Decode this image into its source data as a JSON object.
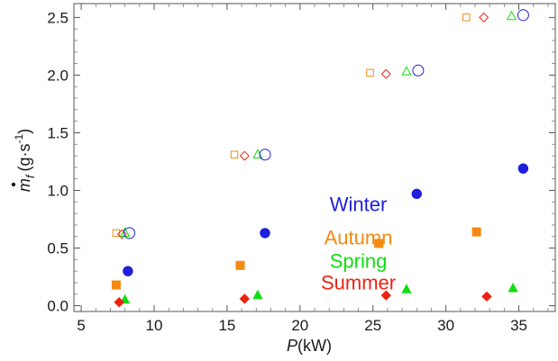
{
  "chart_data": {
    "type": "scatter",
    "title": "",
    "xlabel": {
      "var": "P",
      "unit": "(kW)"
    },
    "ylabel": {
      "var": "m",
      "sub": "f",
      "unit": "(g·s",
      "exp": "-1",
      "close": ")"
    },
    "xlim": [
      4.5,
      37.5
    ],
    "ylim": [
      -0.05,
      2.62
    ],
    "xticks": [
      "5",
      "10",
      "15",
      "20",
      "25",
      "30",
      "35"
    ],
    "yticks": [
      "0.0",
      "0.5",
      "1.0",
      "1.5",
      "2.0",
      "2.5"
    ],
    "xtick_values": [
      5,
      10,
      15,
      20,
      25,
      30,
      35
    ],
    "ytick_values": [
      0,
      0.5,
      1.0,
      1.5,
      2.0,
      2.5
    ],
    "grid": false,
    "colors": {
      "winter": "#1f1fdd",
      "autumn": "#f38a11",
      "spring": "#11dd11",
      "summer": "#ee2211"
    },
    "series": [
      {
        "name": "Winter",
        "key": "winter",
        "marker": "circle",
        "filled": true,
        "x": [
          8.2,
          17.6,
          28.0,
          35.3
        ],
        "y": [
          0.3,
          0.63,
          0.97,
          1.19
        ]
      },
      {
        "name": "Autumn",
        "key": "autumn",
        "marker": "square",
        "filled": true,
        "x": [
          7.4,
          15.9,
          25.4,
          32.1
        ],
        "y": [
          0.18,
          0.35,
          0.54,
          0.64
        ]
      },
      {
        "name": "Spring",
        "key": "spring",
        "marker": "triangle",
        "filled": true,
        "x": [
          8.0,
          17.1,
          27.3,
          34.6
        ],
        "y": [
          0.05,
          0.09,
          0.14,
          0.15
        ]
      },
      {
        "name": "Summer",
        "key": "summer",
        "marker": "diamond",
        "filled": true,
        "x": [
          7.6,
          16.2,
          25.9,
          32.8
        ],
        "y": [
          0.03,
          0.06,
          0.09,
          0.08
        ]
      },
      {
        "key": "autumn",
        "marker": "square",
        "filled": false,
        "x": [
          7.4,
          15.5,
          24.8,
          31.4
        ],
        "y": [
          0.63,
          1.31,
          2.02,
          2.5
        ]
      },
      {
        "key": "summer",
        "marker": "diamond",
        "filled": false,
        "x": [
          7.8,
          16.2,
          25.9,
          32.6
        ],
        "y": [
          0.62,
          1.3,
          2.01,
          2.5
        ]
      },
      {
        "key": "spring",
        "marker": "triangle",
        "filled": false,
        "x": [
          8.0,
          17.1,
          27.3,
          34.5
        ],
        "y": [
          0.63,
          1.31,
          2.03,
          2.51
        ]
      },
      {
        "key": "winter",
        "marker": "circle",
        "filled": false,
        "x": [
          8.3,
          17.6,
          28.1,
          35.3
        ],
        "y": [
          0.63,
          1.31,
          2.04,
          2.52
        ]
      }
    ],
    "annotations": [
      {
        "text": "Winter",
        "key": "winter",
        "x": 24.0,
        "y": 0.82
      },
      {
        "text": "Autumn",
        "key": "autumn",
        "x": 24.0,
        "y": 0.53
      },
      {
        "text": "Spring",
        "key": "spring",
        "x": 24.0,
        "y": 0.33
      },
      {
        "text": "Summer",
        "key": "summer",
        "x": 24.0,
        "y": 0.14
      }
    ]
  }
}
